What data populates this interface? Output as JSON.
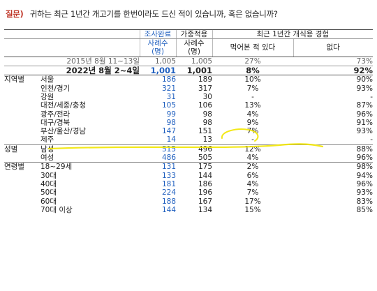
{
  "question": {
    "label": "질문)",
    "text": "귀하는 최근 1년간 개고기를 한번이라도 드신 적이 있습니까, 혹은 없습니까?"
  },
  "header": {
    "survey_done": "조사완료",
    "weighted": "가중적용",
    "experience_title": "최근 1년간 개식용 경험",
    "cases_label": "사례수",
    "unit_label": "(명)",
    "yes_label": "먹어본 적 있다",
    "no_label": "없다"
  },
  "rows": [
    {
      "group": "",
      "sub": "2015년 8월 11~13일",
      "n": "1,005",
      "w": "1,005",
      "yes": "27%",
      "no": "73%"
    },
    {
      "group": "",
      "sub": "2022년 8월 2~4일",
      "n": "1,001",
      "w": "1,001",
      "yes": "8%",
      "no": "92%"
    },
    {
      "group": "지역별",
      "sub": "서울",
      "n": "186",
      "w": "189",
      "yes": "10%",
      "no": "90%"
    },
    {
      "group": "",
      "sub": "인천/경기",
      "n": "321",
      "w": "317",
      "yes": "7%",
      "no": "93%"
    },
    {
      "group": "",
      "sub": "강원",
      "n": "31",
      "w": "30",
      "yes": "-",
      "no": "-"
    },
    {
      "group": "",
      "sub": "대전/세종/충청",
      "n": "105",
      "w": "106",
      "yes": "13%",
      "no": "87%"
    },
    {
      "group": "",
      "sub": "광주/전라",
      "n": "99",
      "w": "98",
      "yes": "4%",
      "no": "96%"
    },
    {
      "group": "",
      "sub": "대구/경북",
      "n": "98",
      "w": "98",
      "yes": "9%",
      "no": "91%"
    },
    {
      "group": "",
      "sub": "부산/울산/경남",
      "n": "147",
      "w": "151",
      "yes": "7%",
      "no": "93%"
    },
    {
      "group": "",
      "sub": "제주",
      "n": "14",
      "w": "13",
      "yes": "-",
      "no": "-"
    },
    {
      "group": "성별",
      "sub": "남성",
      "n": "515",
      "w": "496",
      "yes": "12%",
      "no": "88%"
    },
    {
      "group": "",
      "sub": "여성",
      "n": "486",
      "w": "505",
      "yes": "4%",
      "no": "96%"
    },
    {
      "group": "연령별",
      "sub": "18~29세",
      "n": "131",
      "w": "175",
      "yes": "2%",
      "no": "98%"
    },
    {
      "group": "",
      "sub": "30대",
      "n": "133",
      "w": "144",
      "yes": "6%",
      "no": "94%"
    },
    {
      "group": "",
      "sub": "40대",
      "n": "181",
      "w": "186",
      "yes": "4%",
      "no": "96%"
    },
    {
      "group": "",
      "sub": "50대",
      "n": "224",
      "w": "196",
      "yes": "7%",
      "no": "93%"
    },
    {
      "group": "",
      "sub": "60대",
      "n": "188",
      "w": "167",
      "yes": "17%",
      "no": "83%"
    },
    {
      "group": "",
      "sub": "70대 이상",
      "n": "144",
      "w": "134",
      "yes": "15%",
      "no": "85%"
    }
  ],
  "colors": {
    "question_label": "#c0392b",
    "blue_values": "#1f5fbf",
    "highlighter": "#f2e600"
  }
}
